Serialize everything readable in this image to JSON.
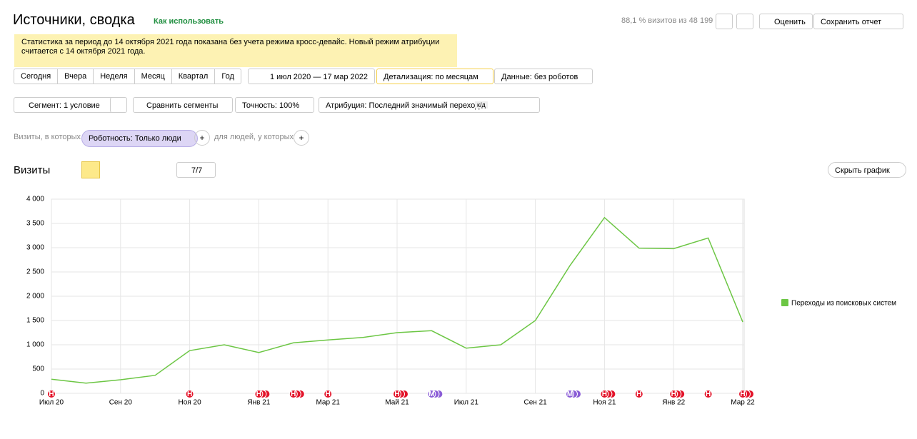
{
  "header": {
    "title": "Источники, сводка",
    "help_link": "Как использовать",
    "visits_share": "88,1 % визитов из 48 199",
    "rate_button": "Оценить",
    "save_button": "Сохранить отчет"
  },
  "notice": "Статистика за период до 14 октября 2021 года показана без учета режима кросс-девайс. Новый режим атрибуции считается с 14 октября 2021 года.",
  "period_buttons": [
    "Сегодня",
    "Вчера",
    "Неделя",
    "Месяц",
    "Квартал",
    "Год"
  ],
  "date_range": "1 июл 2020 — 17 мар 2022",
  "detail": "Детализация: по месяцам",
  "data_filter": "Данные: без роботов",
  "segment": "Сегмент: 1 условие",
  "compare": "Сравнить сегменты",
  "accuracy": "Точность: 100%",
  "attribution": "Атрибуция: Последний значимый переход",
  "attribution_badge": "к/д",
  "filter": {
    "prefix": "Визиты, в которых",
    "chip": "Роботность: Только люди",
    "people_prefix": "для людей, у которых"
  },
  "section_title": "Визиты",
  "annotations_count": "7/7",
  "hide_chart": "Скрыть график",
  "chart_data": {
    "type": "line",
    "categories": [
      "Июл 20",
      null,
      "Сен 20",
      null,
      "Ноя 20",
      null,
      "Янв 21",
      null,
      "Мар 21",
      null,
      "Май 21",
      null,
      "Июл 21",
      null,
      "Сен 21",
      null,
      "Ноя 21",
      null,
      "Янв 22",
      null,
      "Мар 22"
    ],
    "series": [
      {
        "name": "Переходы из поисковых систем",
        "color": "#6cc644",
        "values": [
          290,
          210,
          280,
          370,
          880,
          1000,
          840,
          1040,
          1100,
          1150,
          1250,
          1290,
          930,
          1000,
          1500,
          2630,
          3620,
          2990,
          2980,
          3200,
          1470
        ]
      }
    ],
    "ylim": [
      0,
      4000
    ],
    "yticks": [
      0,
      500,
      {
        "value": 1000,
        "label": "1 000"
      },
      {
        "value": 1500,
        "label": "1 500"
      },
      {
        "value": 2000,
        "label": "2 000"
      },
      {
        "value": 2500,
        "label": "2 500"
      },
      {
        "value": 3000,
        "label": "3 000"
      },
      {
        "value": 3500,
        "label": "3 500"
      },
      {
        "value": 4000,
        "label": "4 000"
      }
    ],
    "grid": true,
    "legend": "right",
    "markers": [
      {
        "index": 0,
        "label": "Н",
        "stack": 1,
        "color": "#e3142a"
      },
      {
        "index": 4,
        "label": "Н",
        "stack": 1,
        "color": "#e3142a"
      },
      {
        "index": 6,
        "label": "Н",
        "stack": 3,
        "color": "#e3142a"
      },
      {
        "index": 7,
        "label": "Н",
        "stack": 3,
        "color": "#e3142a"
      },
      {
        "index": 8,
        "label": "Н",
        "stack": 1,
        "color": "#e3142a"
      },
      {
        "index": 10,
        "label": "Н",
        "stack": 3,
        "color": "#e3142a"
      },
      {
        "index": 11,
        "label": "М",
        "stack": 3,
        "color": "#8a5cd6"
      },
      {
        "index": 15,
        "label": "М",
        "stack": 3,
        "color": "#8a5cd6"
      },
      {
        "index": 16,
        "label": "Н",
        "stack": 3,
        "color": "#e3142a"
      },
      {
        "index": 17,
        "label": "Н",
        "stack": 1,
        "color": "#e3142a"
      },
      {
        "index": 18,
        "label": "Н",
        "stack": 3,
        "color": "#e3142a"
      },
      {
        "index": 19,
        "label": "Н",
        "stack": 1,
        "color": "#e3142a"
      },
      {
        "index": 20,
        "label": "Н",
        "stack": 3,
        "color": "#e3142a"
      }
    ]
  }
}
